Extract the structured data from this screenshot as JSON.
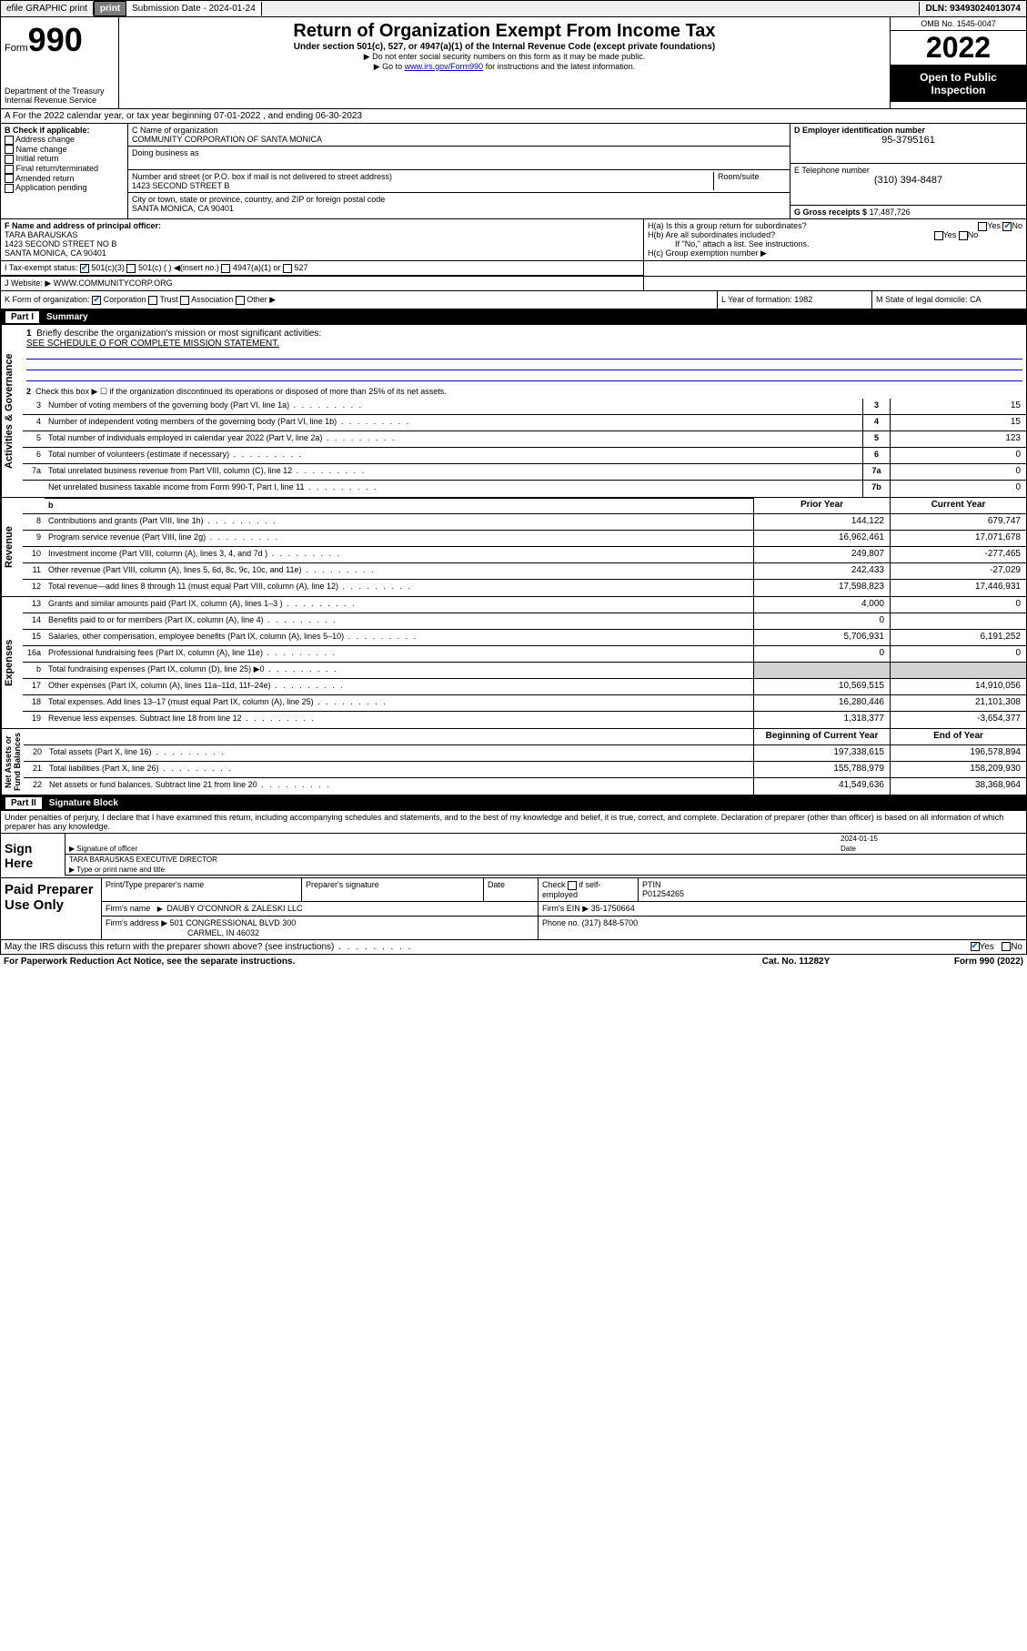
{
  "topbar": {
    "efile": "efile GRAPHIC print",
    "sub_label": "Submission Date - 2024-01-24",
    "dln": "DLN: 93493024013074"
  },
  "header": {
    "form_word": "Form",
    "form_num": "990",
    "title": "Return of Organization Exempt From Income Tax",
    "subtitle": "Under section 501(c), 527, or 4947(a)(1) of the Internal Revenue Code (except private foundations)",
    "note1": "▶ Do not enter social security numbers on this form as it may be made public.",
    "note2_prefix": "▶ Go to ",
    "note2_link": "www.irs.gov/Form990",
    "note2_suffix": " for instructions and the latest information.",
    "dept": "Department of the Treasury",
    "irs": "Internal Revenue Service",
    "omb": "OMB No. 1545-0047",
    "year": "2022",
    "inspect": "Open to Public Inspection"
  },
  "rowA": "A For the 2022 calendar year, or tax year beginning 07-01-2022   , and ending 06-30-2023",
  "boxB": {
    "title": "B Check if applicable:",
    "items": [
      "Address change",
      "Name change",
      "Initial return",
      "Final return/terminated",
      "Amended return",
      "Application pending"
    ]
  },
  "boxC": {
    "name_label": "C Name of organization",
    "name": "COMMUNITY CORPORATION OF SANTA MONICA",
    "dba_label": "Doing business as",
    "dba": "",
    "street_label": "Number and street (or P.O. box if mail is not delivered to street address)",
    "room_label": "Room/suite",
    "street": "1423 SECOND STREET B",
    "city_label": "City or town, state or province, country, and ZIP or foreign postal code",
    "city": "SANTA MONICA, CA  90401"
  },
  "boxD": {
    "label": "D Employer identification number",
    "value": "95-3795161"
  },
  "boxE": {
    "label": "E Telephone number",
    "value": "(310) 394-8487"
  },
  "boxG": {
    "label": "G Gross receipts $",
    "value": "17,487,726"
  },
  "boxF": {
    "label": "F Name and address of principal officer:",
    "name": "TARA BARAUSKAS",
    "addr1": "1423 SECOND STREET NO B",
    "addr2": "SANTA MONICA, CA  90401"
  },
  "boxH": {
    "a": "H(a)  Is this a group return for subordinates?",
    "a_yes": "Yes",
    "a_no": "No",
    "b": "H(b)  Are all subordinates included?",
    "b_yes": "Yes",
    "b_no": "No",
    "b_note": "If \"No,\" attach a list. See instructions.",
    "c": "H(c)  Group exemption number ▶"
  },
  "rowI": {
    "label": "I     Tax-exempt status:",
    "opts": [
      "501(c)(3)",
      "501(c) (  ) ◀(insert no.)",
      "4947(a)(1) or",
      "527"
    ]
  },
  "rowJ": {
    "label": "J   Website: ▶",
    "value": "WWW.COMMUNITYCORP.ORG"
  },
  "rowK": {
    "label": "K Form of organization:",
    "opts": [
      "Corporation",
      "Trust",
      "Association",
      "Other ▶"
    ]
  },
  "rowL": {
    "label": "L Year of formation:",
    "value": "1982"
  },
  "rowM": {
    "label": "M State of legal domicile:",
    "value": "CA"
  },
  "part1": {
    "label": "Part I",
    "title": "Summary"
  },
  "summary": {
    "q1": "Briefly describe the organization's mission or most significant activities:",
    "q1a": "SEE SCHEDULE O FOR COMPLETE MISSION STATEMENT.",
    "q2": "Check this box ▶ ☐  if the organization discontinued its operations or disposed of more than 25% of its net assets.",
    "rows_gov": [
      {
        "n": "3",
        "t": "Number of voting members of the governing body (Part VI, line 1a)",
        "b": "3",
        "v": "15"
      },
      {
        "n": "4",
        "t": "Number of independent voting members of the governing body (Part VI, line 1b)",
        "b": "4",
        "v": "15"
      },
      {
        "n": "5",
        "t": "Total number of individuals employed in calendar year 2022 (Part V, line 2a)",
        "b": "5",
        "v": "123"
      },
      {
        "n": "6",
        "t": "Total number of volunteers (estimate if necessary)",
        "b": "6",
        "v": "0"
      },
      {
        "n": "7a",
        "t": "Total unrelated business revenue from Part VIII, column (C), line 12",
        "b": "7a",
        "v": "0"
      },
      {
        "n": "",
        "t": "Net unrelated business taxable income from Form 990-T, Part I, line 11",
        "b": "7b",
        "v": "0"
      }
    ],
    "hdr_prior": "Prior Year",
    "hdr_curr": "Current Year",
    "rows_rev": [
      {
        "n": "8",
        "t": "Contributions and grants (Part VIII, line 1h)",
        "p": "144,122",
        "c": "679,747"
      },
      {
        "n": "9",
        "t": "Program service revenue (Part VIII, line 2g)",
        "p": "16,962,461",
        "c": "17,071,678"
      },
      {
        "n": "10",
        "t": "Investment income (Part VIII, column (A), lines 3, 4, and 7d )",
        "p": "249,807",
        "c": "-277,465"
      },
      {
        "n": "11",
        "t": "Other revenue (Part VIII, column (A), lines 5, 6d, 8c, 9c, 10c, and 11e)",
        "p": "242,433",
        "c": "-27,029"
      },
      {
        "n": "12",
        "t": "Total revenue—add lines 8 through 11 (must equal Part VIII, column (A), line 12)",
        "p": "17,598,823",
        "c": "17,446,931"
      }
    ],
    "rows_exp": [
      {
        "n": "13",
        "t": "Grants and similar amounts paid (Part IX, column (A), lines 1–3 )",
        "p": "4,000",
        "c": "0"
      },
      {
        "n": "14",
        "t": "Benefits paid to or for members (Part IX, column (A), line 4)",
        "p": "0",
        "c": ""
      },
      {
        "n": "15",
        "t": "Salaries, other compensation, employee benefits (Part IX, column (A), lines 5–10)",
        "p": "5,706,931",
        "c": "6,191,252"
      },
      {
        "n": "16a",
        "t": "Professional fundraising fees (Part IX, column (A), line 11e)",
        "p": "0",
        "c": "0"
      },
      {
        "n": "b",
        "t": "Total fundraising expenses (Part IX, column (D), line 25) ▶0",
        "p": "",
        "c": "",
        "shade": true
      },
      {
        "n": "17",
        "t": "Other expenses (Part IX, column (A), lines 11a–11d, 11f–24e)",
        "p": "10,569,515",
        "c": "14,910,056"
      },
      {
        "n": "18",
        "t": "Total expenses. Add lines 13–17 (must equal Part IX, column (A), line 25)",
        "p": "16,280,446",
        "c": "21,101,308"
      },
      {
        "n": "19",
        "t": "Revenue less expenses. Subtract line 18 from line 12",
        "p": "1,318,377",
        "c": "-3,654,377"
      }
    ],
    "hdr_beg": "Beginning of Current Year",
    "hdr_end": "End of Year",
    "rows_net": [
      {
        "n": "20",
        "t": "Total assets (Part X, line 16)",
        "p": "197,338,615",
        "c": "196,578,894"
      },
      {
        "n": "21",
        "t": "Total liabilities (Part X, line 26)",
        "p": "155,788,979",
        "c": "158,209,930"
      },
      {
        "n": "22",
        "t": "Net assets or fund balances. Subtract line 21 from line 20",
        "p": "41,549,636",
        "c": "38,368,964"
      }
    ]
  },
  "part2": {
    "label": "Part II",
    "title": "Signature Block"
  },
  "sig": {
    "decl": "Under penalties of perjury, I declare that I have examined this return, including accompanying schedules and statements, and to the best of my knowledge and belief, it is true, correct, and complete. Declaration of preparer (other than officer) is based on all information of which preparer has any knowledge.",
    "here": "Sign Here",
    "date": "2024-01-15",
    "sig_of": "Signature of officer",
    "date_lbl": "Date",
    "name": "TARA BARAUSKAS EXECUTIVE DIRECTOR",
    "name_lbl": "Type or print name and title"
  },
  "prep": {
    "title": "Paid Preparer Use Only",
    "h1": "Print/Type preparer's name",
    "h2": "Preparer's signature",
    "h3": "Date",
    "h4_a": "Check",
    "h4_b": "if self-employed",
    "h5": "PTIN",
    "ptin": "P01254265",
    "firm_lbl": "Firm's name",
    "firm": "DAUBY O'CONNOR & ZALESKI LLC",
    "ein_lbl": "Firm's EIN ▶",
    "ein": "35-1750664",
    "addr_lbl": "Firm's address ▶",
    "addr1": "501 CONGRESSIONAL BLVD 300",
    "addr2": "CARMEL, IN  46032",
    "phone_lbl": "Phone no.",
    "phone": "(317) 848-5700"
  },
  "footer": {
    "discuss": "May the IRS discuss this return with the preparer shown above? (see instructions)",
    "yes": "Yes",
    "no": "No",
    "pra": "For Paperwork Reduction Act Notice, see the separate instructions.",
    "cat": "Cat. No. 11282Y",
    "form": "Form 990 (2022)"
  }
}
